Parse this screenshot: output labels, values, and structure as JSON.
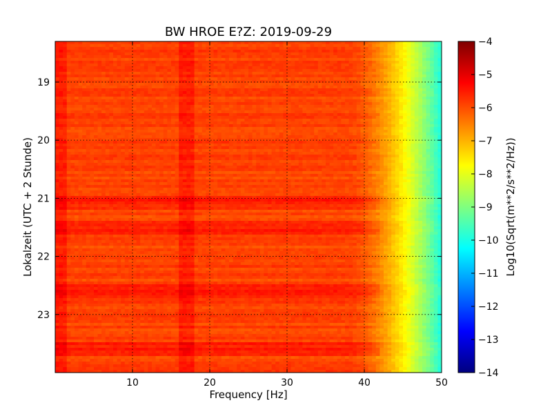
{
  "chart_data": {
    "type": "heatmap",
    "title": "BW HROE E?Z: 2019-09-29",
    "xlabel": "Frequency [Hz]",
    "ylabel": "Lokalzeit (UTC + 2 Stunde)",
    "xlim": [
      0,
      50
    ],
    "ylim": [
      18.3,
      24.0
    ],
    "x_ticks": [
      10,
      20,
      30,
      40,
      50
    ],
    "y_ticks": [
      19,
      20,
      21,
      22,
      23
    ],
    "y_inverted": true,
    "grid": true,
    "colormap": "jet",
    "colorbar": {
      "label": "Log10(Sqrt(m**2/s**2/Hz))",
      "min": -14,
      "max": -4,
      "ticks": [
        -4,
        -5,
        -6,
        -7,
        -8,
        -9,
        -10,
        -11,
        -12,
        -13,
        -14
      ]
    },
    "features": {
      "baseline_level": -5.9,
      "strong_band_hz": 17,
      "roll_off_start_hz": 38,
      "value_at_50hz": -10.0,
      "strong_time_bands": [
        21.1,
        21.5,
        22.6,
        23.6
      ]
    }
  }
}
